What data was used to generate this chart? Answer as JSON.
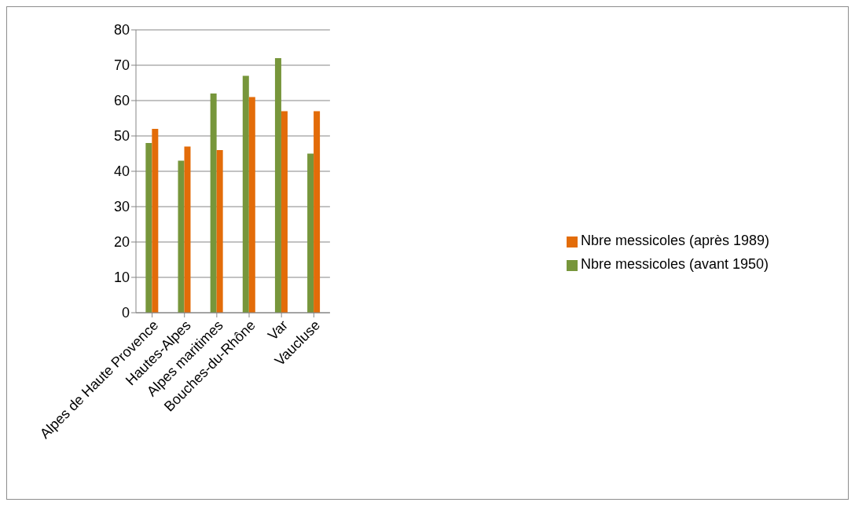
{
  "chart_data": {
    "type": "bar",
    "categories": [
      "Alpes de Haute Provence",
      "Hautes-Alpes",
      "Alpes maritimes",
      "Bouches-du-Rhône",
      "Var",
      "Vaucluse"
    ],
    "series": [
      {
        "name": "Nbre messicoles (avant 1950)",
        "color": "#77963b",
        "values": [
          48,
          43,
          62,
          67,
          72,
          45
        ]
      },
      {
        "name": "Nbre messicoles (après 1989)",
        "color": "#e36c09",
        "values": [
          52,
          47,
          46,
          61,
          57,
          57
        ]
      }
    ],
    "ylim": [
      0,
      80
    ],
    "yticks": [
      0,
      10,
      20,
      30,
      40,
      50,
      60,
      70,
      80
    ],
    "grid": "y",
    "legend": "right"
  }
}
